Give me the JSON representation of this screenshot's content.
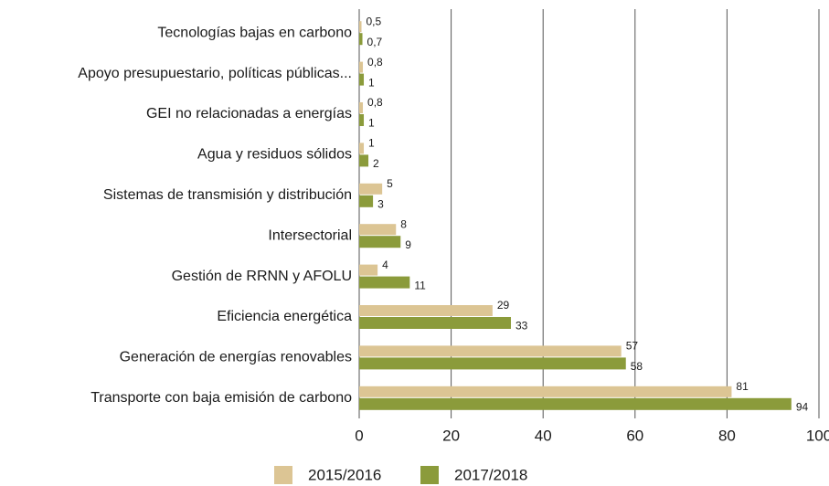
{
  "chart_data": {
    "type": "bar",
    "orientation": "horizontal",
    "categories": [
      "Tecnologías bajas en carbono",
      "Apoyo presupuestario, políticas públicas...",
      "GEI no relacionadas a energías",
      "Agua y residuos sólidos",
      "Sistemas de transmisión y distribución",
      "Intersectorial",
      "Gestión de RRNN y AFOLU",
      "Eficiencia energética",
      "Generación de energías renovables",
      "Transporte con baja emisión de carbono"
    ],
    "series": [
      {
        "name": "2015/2016",
        "color": "#dcc594",
        "values": [
          0.5,
          0.8,
          0.8,
          1,
          5,
          8,
          4,
          29,
          57,
          81
        ],
        "value_labels": [
          "0,5",
          "0,8",
          "0,8",
          "1",
          "5",
          "8",
          "4",
          "29",
          "57",
          "81"
        ]
      },
      {
        "name": "2017/2018",
        "color": "#8b9b3b",
        "values": [
          0.7,
          1,
          1,
          2,
          3,
          9,
          11,
          33,
          58,
          94
        ],
        "value_labels": [
          "0,7",
          "1",
          "1",
          "2",
          "3",
          "9",
          "11",
          "33",
          "58",
          "94"
        ]
      }
    ],
    "xlim": [
      0,
      100
    ],
    "xticks": [
      0,
      20,
      40,
      60,
      80,
      100
    ],
    "grid": true,
    "legend": "bottom"
  }
}
